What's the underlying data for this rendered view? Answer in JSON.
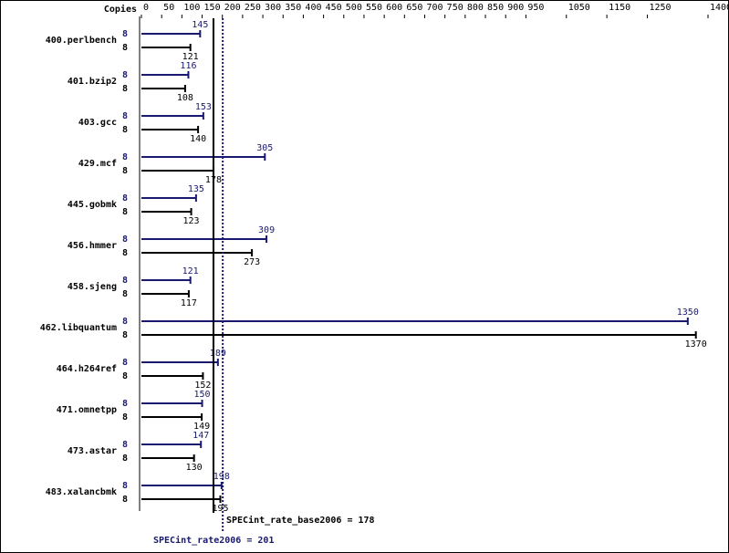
{
  "chart_data": {
    "type": "bar",
    "copies_header": "Copies",
    "categories": [
      "400.perlbench",
      "401.bzip2",
      "403.gcc",
      "429.mcf",
      "445.gobmk",
      "456.hmmer",
      "458.sjeng",
      "462.libquantum",
      "464.h264ref",
      "471.omnetpp",
      "473.astar",
      "483.xalancbmk"
    ],
    "series": [
      {
        "color": "#191970",
        "copies": [
          8,
          8,
          8,
          8,
          8,
          8,
          8,
          8,
          8,
          8,
          8,
          8
        ],
        "values": [
          145,
          116,
          153,
          305,
          135,
          309,
          121,
          1350,
          189,
          150,
          147,
          198
        ]
      },
      {
        "color": "#000000",
        "copies": [
          8,
          8,
          8,
          8,
          8,
          8,
          8,
          8,
          8,
          8,
          8,
          8
        ],
        "values": [
          121,
          108,
          140,
          178,
          123,
          273,
          117,
          1370,
          152,
          149,
          130,
          195
        ]
      }
    ],
    "xlim": [
      0,
      1400
    ],
    "xticks": [
      0,
      50,
      100,
      150,
      200,
      250,
      300,
      350,
      400,
      450,
      500,
      550,
      600,
      650,
      700,
      750,
      800,
      850,
      900,
      950,
      1050,
      1150,
      1250,
      1400
    ],
    "reference_lines": [
      {
        "label": "SPECint_rate_base2006 =",
        "value": 178,
        "color": "#000000",
        "dashed": false
      },
      {
        "label": "SPECint_rate2006 =",
        "value": 201,
        "color": "#191970",
        "dashed": true
      }
    ]
  }
}
